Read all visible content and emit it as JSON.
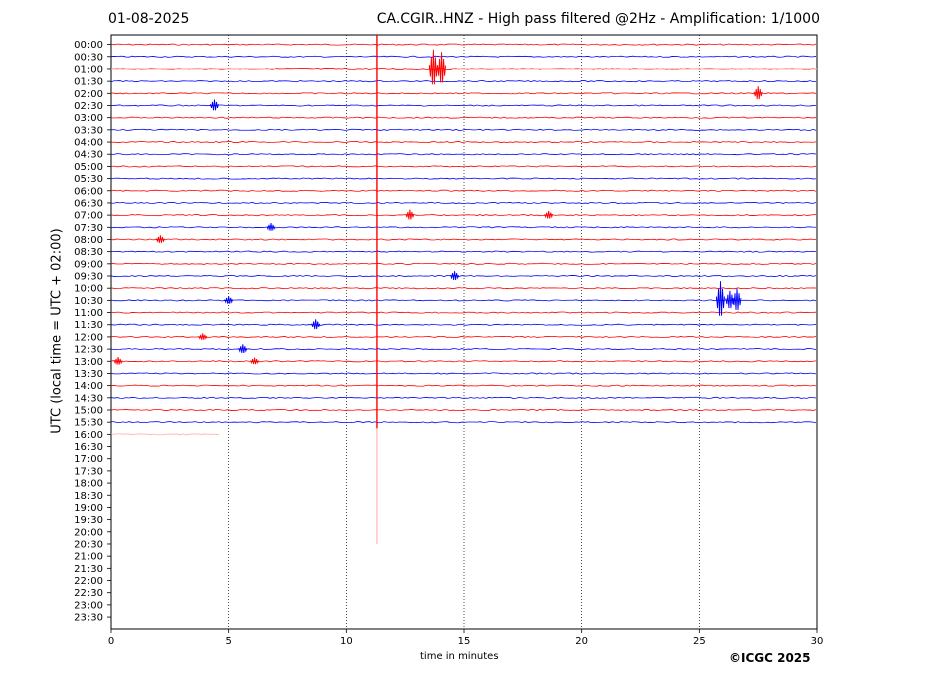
{
  "header": {
    "date": "01-08-2025",
    "title": "CA.CGIR..HNZ - High pass filtered @2Hz - Amplification: 1/1000"
  },
  "footer": {
    "copyright": "©ICGC 2025"
  },
  "chart_data": {
    "type": "line",
    "title": "CA.CGIR..HNZ - High pass filtered @2Hz - Amplification: 1/1000",
    "xlabel": "time in minutes",
    "ylabel": "UTC (local time = UTC + 02:00)",
    "xlim": [
      0,
      30
    ],
    "x_ticks": [
      0,
      5,
      10,
      15,
      20,
      25,
      30
    ],
    "vertical_gridlines_at": [
      5,
      10,
      15,
      20,
      25
    ],
    "row_labels": [
      "00:00",
      "00:30",
      "01:00",
      "01:30",
      "02:00",
      "02:30",
      "03:00",
      "03:30",
      "04:00",
      "04:30",
      "05:00",
      "05:30",
      "06:00",
      "06:30",
      "07:00",
      "07:30",
      "08:00",
      "08:30",
      "09:00",
      "09:30",
      "10:00",
      "10:30",
      "11:00",
      "11:30",
      "12:00",
      "12:30",
      "13:00",
      "13:30",
      "14:00",
      "14:30",
      "15:00",
      "15:30",
      "16:00",
      "16:30",
      "17:00",
      "17:30",
      "18:00",
      "18:30",
      "19:00",
      "19:30",
      "20:00",
      "20:30",
      "21:00",
      "21:30",
      "22:00",
      "22:30",
      "23:00",
      "23:30"
    ],
    "colors": {
      "even_rows": "#ff0000",
      "odd_rows": "#0000ff",
      "light_red": "#ffaaaa"
    },
    "traces": [
      {
        "row": "00:00",
        "x_start": 0,
        "x_end": 30
      },
      {
        "row": "00:30",
        "x_start": 0,
        "x_end": 30
      },
      {
        "row": "01:00",
        "x_start": 0,
        "x_end": 30,
        "faint_ranges": [
          [
            0,
            7
          ],
          [
            14.5,
            30
          ]
        ]
      },
      {
        "row": "01:30",
        "x_start": 0,
        "x_end": 30
      },
      {
        "row": "02:00",
        "x_start": 0,
        "x_end": 30
      },
      {
        "row": "02:30",
        "x_start": 0,
        "x_end": 30
      },
      {
        "row": "03:00",
        "x_start": 0,
        "x_end": 30
      },
      {
        "row": "03:30",
        "x_start": 0,
        "x_end": 30
      },
      {
        "row": "04:00",
        "x_start": 0,
        "x_end": 30
      },
      {
        "row": "04:30",
        "x_start": 0,
        "x_end": 30
      },
      {
        "row": "05:00",
        "x_start": 0,
        "x_end": 30
      },
      {
        "row": "05:30",
        "x_start": 0,
        "x_end": 30
      },
      {
        "row": "06:00",
        "x_start": 0,
        "x_end": 30
      },
      {
        "row": "06:30",
        "x_start": 0,
        "x_end": 30
      },
      {
        "row": "07:00",
        "x_start": 0,
        "x_end": 30
      },
      {
        "row": "07:30",
        "x_start": 0,
        "x_end": 30
      },
      {
        "row": "08:00",
        "x_start": 0,
        "x_end": 30
      },
      {
        "row": "08:30",
        "x_start": 0,
        "x_end": 30
      },
      {
        "row": "09:00",
        "x_start": 0,
        "x_end": 30
      },
      {
        "row": "09:30",
        "x_start": 0,
        "x_end": 30
      },
      {
        "row": "10:00",
        "x_start": 0,
        "x_end": 30
      },
      {
        "row": "10:30",
        "x_start": 0,
        "x_end": 30
      },
      {
        "row": "11:00",
        "x_start": 0,
        "x_end": 30
      },
      {
        "row": "11:30",
        "x_start": 0,
        "x_end": 30
      },
      {
        "row": "12:00",
        "x_start": 0,
        "x_end": 30
      },
      {
        "row": "12:30",
        "x_start": 0,
        "x_end": 30
      },
      {
        "row": "13:00",
        "x_start": 0,
        "x_end": 30
      },
      {
        "row": "13:30",
        "x_start": 0,
        "x_end": 30
      },
      {
        "row": "14:00",
        "x_start": 0,
        "x_end": 30
      },
      {
        "row": "14:30",
        "x_start": 0,
        "x_end": 30
      },
      {
        "row": "15:00",
        "x_start": 0,
        "x_end": 30
      },
      {
        "row": "15:30",
        "x_start": 0,
        "x_end": 30
      },
      {
        "row": "16:00",
        "x_start": 0,
        "x_end": 4.6,
        "faint": true
      }
    ],
    "events": [
      {
        "row": "01:00",
        "x": 13.7,
        "amplitude": 1.6
      },
      {
        "row": "01:00",
        "x": 14.05,
        "amplitude": 1.4
      },
      {
        "row": "02:00",
        "x": 27.5,
        "amplitude": 0.6
      },
      {
        "row": "02:30",
        "x": 4.4,
        "amplitude": 0.5
      },
      {
        "row": "07:00",
        "x": 12.7,
        "amplitude": 0.45
      },
      {
        "row": "07:00",
        "x": 18.6,
        "amplitude": 0.35
      },
      {
        "row": "07:30",
        "x": 6.8,
        "amplitude": 0.35
      },
      {
        "row": "08:00",
        "x": 2.1,
        "amplitude": 0.35
      },
      {
        "row": "09:30",
        "x": 14.6,
        "amplitude": 0.4
      },
      {
        "row": "10:30",
        "x": 25.9,
        "amplitude": 1.6
      },
      {
        "row": "10:30",
        "x": 26.3,
        "amplitude": 0.8
      },
      {
        "row": "10:30",
        "x": 26.6,
        "amplitude": 1.0
      },
      {
        "row": "10:30",
        "x": 5.0,
        "amplitude": 0.35
      },
      {
        "row": "11:30",
        "x": 8.7,
        "amplitude": 0.45
      },
      {
        "row": "12:00",
        "x": 3.9,
        "amplitude": 0.3
      },
      {
        "row": "12:30",
        "x": 5.6,
        "amplitude": 0.4
      },
      {
        "row": "13:00",
        "x": 0.3,
        "amplitude": 0.35
      },
      {
        "row": "13:00",
        "x": 6.1,
        "amplitude": 0.3
      }
    ],
    "spike": {
      "x": 11.3,
      "from_row": "00:00",
      "to_row": "20:30",
      "strong_until_row": "16:00"
    },
    "grid": "vertical dotted at 5-minute intervals",
    "legend": null
  }
}
